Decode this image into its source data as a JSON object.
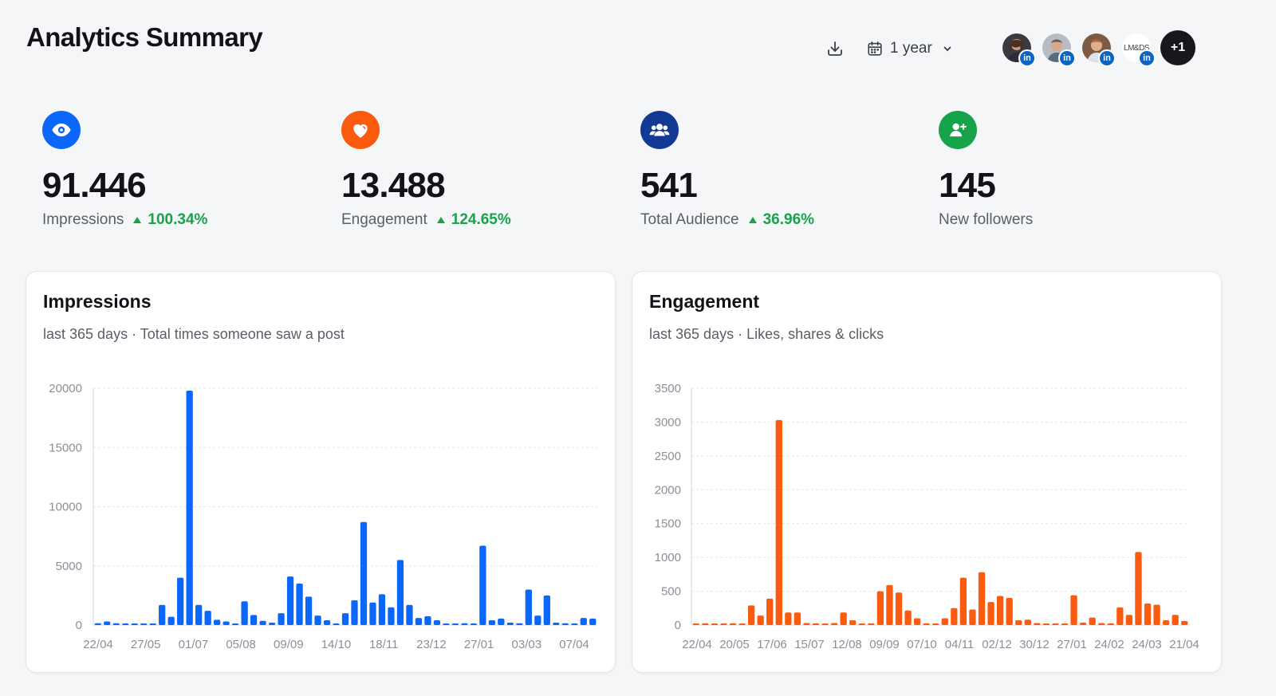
{
  "page": {
    "title": "Analytics Summary"
  },
  "toolbar": {
    "download_icon": "download-icon",
    "date_icon": "calendar-icon",
    "date_range": "1 year",
    "more_count": "+1",
    "avatar_logo_text": "LM&DS"
  },
  "colors": {
    "impressions": "#0b66fa",
    "engagement": "#fb5b0e",
    "audience": "#123a94",
    "followers": "#17a34a",
    "positive": "#17a34a",
    "linkedin": "#0a66c2"
  },
  "kpis": [
    {
      "label": "Impressions",
      "value": "91.446",
      "change": "100.34%",
      "icon": "eye-icon"
    },
    {
      "label": "Engagement",
      "value": "13.488",
      "change": "124.65%",
      "icon": "heart-icon"
    },
    {
      "label": "Total Audience",
      "value": "541",
      "change": "36.96%",
      "icon": "users-icon"
    },
    {
      "label": "New followers",
      "value": "145",
      "change": "",
      "icon": "user-plus-icon"
    }
  ],
  "cards": {
    "impressions": {
      "title": "Impressions",
      "subtitle": "last 365 days · Total times someone saw a post"
    },
    "engagement": {
      "title": "Engagement",
      "subtitle": "last 365 days · Likes, shares & clicks"
    }
  },
  "chart_data": [
    {
      "type": "bar",
      "title": "Impressions",
      "ylim": [
        0,
        20000
      ],
      "yticks": [
        0,
        5000,
        10000,
        15000,
        20000
      ],
      "grid": true,
      "color": "#0b66fa",
      "xtick_labels": [
        "22/04",
        "27/05",
        "01/07",
        "05/08",
        "09/09",
        "14/10",
        "18/11",
        "23/12",
        "27/01",
        "03/03",
        "07/04"
      ],
      "values": [
        150,
        300,
        150,
        60,
        50,
        40,
        30,
        1700,
        700,
        4000,
        19800,
        1700,
        1200,
        450,
        300,
        100,
        2000,
        850,
        350,
        200,
        1000,
        4100,
        3500,
        2400,
        800,
        400,
        80,
        1000,
        2100,
        8700,
        1900,
        2600,
        1500,
        5500,
        1700,
        600,
        750,
        400,
        80,
        80,
        150,
        60,
        6700,
        400,
        550,
        200,
        150,
        3000,
        800,
        2500,
        200,
        150,
        100,
        600,
        550
      ]
    },
    {
      "type": "bar",
      "title": "Engagement",
      "ylim": [
        0,
        3500
      ],
      "yticks": [
        0,
        500,
        1000,
        1500,
        2000,
        2500,
        3000,
        3500
      ],
      "grid": true,
      "color": "#fb5b0e",
      "xtick_labels": [
        "22/04",
        "20/05",
        "17/06",
        "15/07",
        "12/08",
        "09/09",
        "07/10",
        "04/11",
        "02/12",
        "30/12",
        "27/01",
        "24/02",
        "24/03",
        "21/04"
      ],
      "values": [
        15,
        25,
        15,
        10,
        25,
        20,
        290,
        140,
        390,
        3030,
        185,
        185,
        30,
        25,
        10,
        30,
        185,
        70,
        20,
        15,
        500,
        590,
        480,
        215,
        100,
        25,
        15,
        100,
        250,
        700,
        230,
        780,
        340,
        430,
        400,
        70,
        80,
        30,
        10,
        15,
        10,
        440,
        35,
        110,
        30,
        25,
        260,
        150,
        1080,
        320,
        300,
        70,
        150,
        60
      ]
    }
  ]
}
